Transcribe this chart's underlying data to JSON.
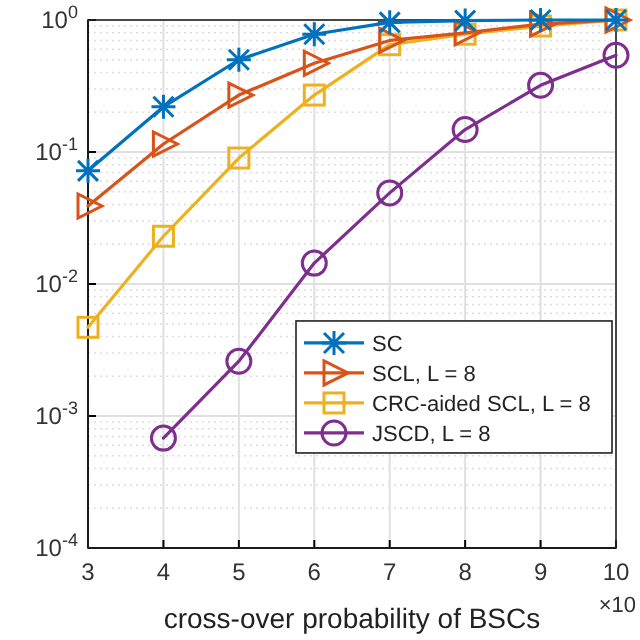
{
  "chart_data": {
    "type": "line",
    "xlabel": "cross-over probability of BSCs",
    "log": "y",
    "grid": true,
    "legend": "right",
    "line_style": "solid",
    "x": [
      3,
      4,
      5,
      6,
      7,
      8,
      9,
      10
    ],
    "xlim": [
      3,
      10
    ],
    "xticks": [
      3,
      4,
      5,
      6,
      7,
      8,
      9,
      10
    ],
    "ylim": [
      0.0001,
      1
    ],
    "yticks": [
      {
        "value": 0.0001,
        "label": "10$^{-4}$"
      },
      {
        "value": 0.001,
        "label": "10$^{-3}$"
      },
      {
        "value": 0.01,
        "label": "10$^{-2}$"
      },
      {
        "value": 0.1,
        "label": "10$^{-1}$"
      },
      {
        "value": 1,
        "label": "10$^{0}$"
      }
    ],
    "annotations": [
      "×10"
    ],
    "series": [
      {
        "name": "SC",
        "color": "#0072bd",
        "marker": "cross",
        "values": [
          0.072,
          0.22,
          0.5,
          0.78,
          0.96,
          0.99,
          1,
          1
        ]
      },
      {
        "name": "SCL, L = 8",
        "color": "#d95319",
        "marker": "triangle",
        "values": [
          0.039,
          0.115,
          0.27,
          0.47,
          0.7,
          0.8,
          0.93,
          1
        ]
      },
      {
        "name": "CRC-aided SCL, L = 8",
        "color": "#edb120",
        "marker": "square",
        "values": [
          0.0047,
          0.023,
          0.09,
          0.27,
          0.65,
          0.78,
          0.9,
          1
        ]
      },
      {
        "name": "JSCD, L = 8",
        "color": "#7e2f8e",
        "marker": "circle",
        "values": [
          null,
          0.00068,
          0.0026,
          0.0144,
          0.049,
          0.148,
          0.32,
          0.54
        ]
      }
    ]
  }
}
